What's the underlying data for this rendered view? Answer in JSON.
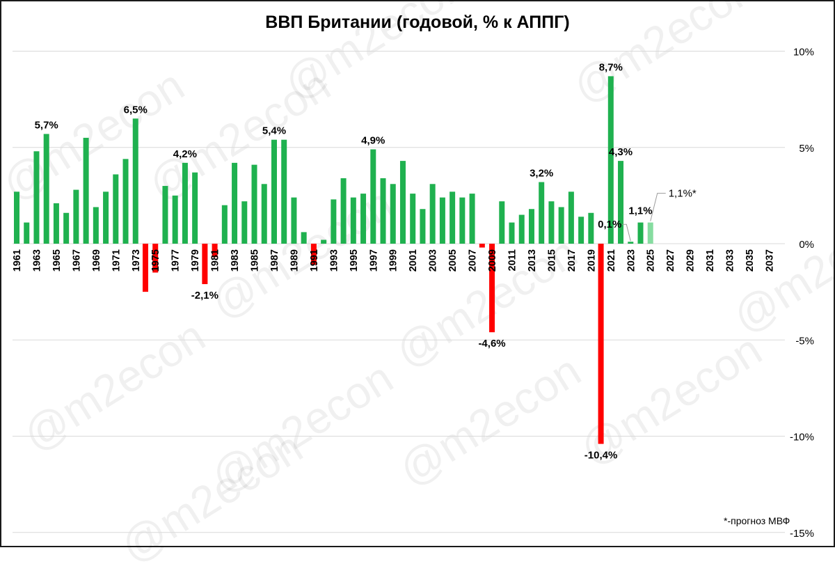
{
  "chart_data": {
    "type": "bar",
    "title": "ВВП Британии (годовой, % к АППГ)",
    "xlabel": "",
    "ylabel": "",
    "ylim": [
      -15,
      10
    ],
    "y_ticks": [
      10,
      5,
      0,
      -5,
      -10,
      -15
    ],
    "y_tick_labels": [
      "10%",
      "5%",
      "0%",
      "-5%",
      "-10%",
      "-15%"
    ],
    "y_axis_position": "right",
    "grid": true,
    "x_tick_labels": [
      "1961",
      "1963",
      "1965",
      "1967",
      "1969",
      "1971",
      "1973",
      "1975",
      "1977",
      "1979",
      "1981",
      "1983",
      "1985",
      "1987",
      "1989",
      "1991",
      "1993",
      "1995",
      "1997",
      "1999",
      "2001",
      "2003",
      "2005",
      "2007",
      "2009",
      "2011",
      "2013",
      "2015",
      "2017",
      "2019",
      "2021",
      "2023",
      "2025",
      "2027",
      "2029",
      "2031",
      "2033",
      "2035",
      "2037"
    ],
    "years": [
      1961,
      1962,
      1963,
      1964,
      1965,
      1966,
      1967,
      1968,
      1969,
      1970,
      1971,
      1972,
      1973,
      1974,
      1975,
      1976,
      1977,
      1978,
      1979,
      1980,
      1981,
      1982,
      1983,
      1984,
      1985,
      1986,
      1987,
      1988,
      1989,
      1990,
      1991,
      1992,
      1993,
      1994,
      1995,
      1996,
      1997,
      1998,
      1999,
      2000,
      2001,
      2002,
      2003,
      2004,
      2005,
      2006,
      2007,
      2008,
      2009,
      2010,
      2011,
      2012,
      2013,
      2014,
      2015,
      2016,
      2017,
      2018,
      2019,
      2020,
      2021,
      2022,
      2023,
      2024,
      2025,
      2026,
      2027,
      2028,
      2029,
      2030,
      2031,
      2032,
      2033,
      2034,
      2035,
      2036,
      2037,
      2038
    ],
    "values": [
      2.7,
      1.1,
      4.8,
      5.7,
      2.1,
      1.6,
      2.8,
      5.5,
      1.9,
      2.7,
      3.6,
      4.4,
      6.5,
      -2.5,
      -1.5,
      3.0,
      2.5,
      4.2,
      3.7,
      -2.1,
      -0.7,
      2.0,
      4.2,
      2.2,
      4.1,
      3.1,
      5.4,
      5.4,
      2.4,
      0.6,
      -1.1,
      0.2,
      2.3,
      3.4,
      2.4,
      2.6,
      4.9,
      3.4,
      3.1,
      4.3,
      2.6,
      1.8,
      3.1,
      2.4,
      2.7,
      2.4,
      2.6,
      -0.2,
      -4.6,
      2.2,
      1.1,
      1.5,
      1.8,
      3.2,
      2.2,
      1.9,
      2.7,
      1.4,
      1.6,
      -10.4,
      8.7,
      4.3,
      0.1,
      1.1,
      1.1,
      null,
      null,
      null,
      null,
      null,
      null,
      null,
      null,
      null,
      null,
      null,
      null,
      null
    ],
    "forecast_years": [
      2025
    ],
    "colors": {
      "positive": "#1fb14f",
      "negative": "#ff0000",
      "forecast": "#86dca0",
      "grid": "#d9d9d9"
    },
    "data_labels": [
      {
        "year": 1964,
        "text": "5,7%"
      },
      {
        "year": 1973,
        "text": "6,5%"
      },
      {
        "year": 1978,
        "text": "4,2%"
      },
      {
        "year": 1980,
        "text": "-2,1%"
      },
      {
        "year": 1987,
        "text": "5,4%"
      },
      {
        "year": 1997,
        "text": "4,9%"
      },
      {
        "year": 2009,
        "text": "-4,6%"
      },
      {
        "year": 2014,
        "text": "3,2%"
      },
      {
        "year": 2020,
        "text": "-10,4%"
      },
      {
        "year": 2021,
        "text": "8,7%"
      },
      {
        "year": 2022,
        "text": "4,3%"
      },
      {
        "year": 2023,
        "text": "0,1%"
      },
      {
        "year": 2024,
        "text": "1,1%"
      },
      {
        "year": 2025,
        "text": "1,1%*"
      }
    ]
  },
  "footnote": "*-прогноз МВФ",
  "watermark": "@m2econ"
}
